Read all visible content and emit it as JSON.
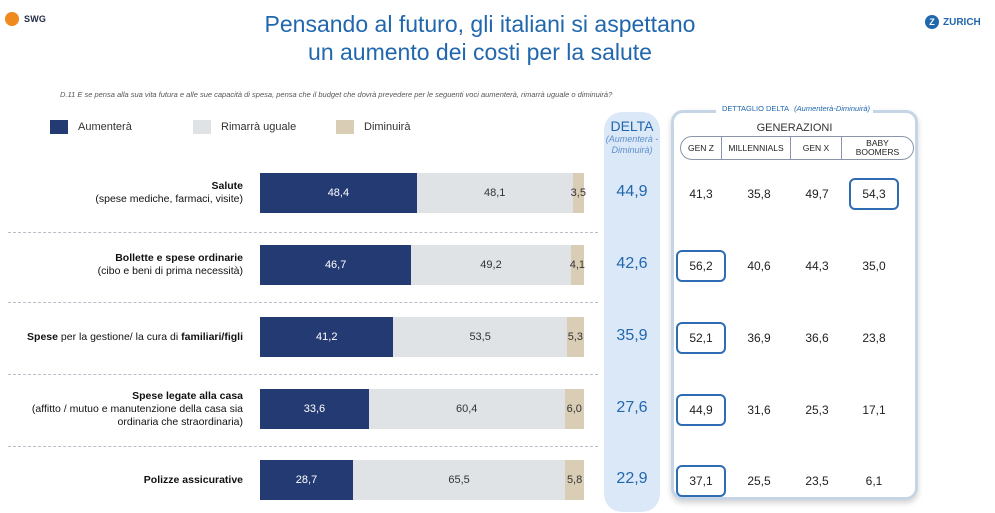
{
  "logos": {
    "left": "SWG",
    "right": "ZURICH"
  },
  "title_line1": "Pensando al futuro, gli italiani si aspettano",
  "title_line2": "un aumento dei costi per la salute",
  "question": "D.11 E se pensa alla sua vita futura e alle sue capacità di spesa, pensa che il budget che dovrà prevedere per le seguenti voci aumenterà, rimarrà uguale o diminuirà?",
  "legend": [
    "Aumenterà",
    "Rimarrà uguale",
    "Diminuirà"
  ],
  "colors": {
    "increase": "#233a72",
    "same": "#dfe3e6",
    "decrease": "#d9cdb6",
    "accent": "#2167ae",
    "delta_bg": "#dbe8f7"
  },
  "delta_header": {
    "title": "DELTA",
    "sub1": "(Aumenterà -",
    "sub2": "Diminuirà)"
  },
  "detail_label": "DETTAGLIO DELTA",
  "detail_label_note": "(Aumenterà-Diminuirà)",
  "generations_title": "GENERAZIONI",
  "gen_columns": [
    "GEN Z",
    "MILLENNIALS",
    "GEN X",
    "BABY BOOMERS"
  ],
  "chart_data": {
    "type": "bar",
    "stacked": true,
    "orientation": "horizontal",
    "categories": [
      {
        "label_bold": "Salute",
        "label_rest": "",
        "label_sub": "(spese mediche, farmaci, visite)"
      },
      {
        "label_bold": "Bollette e spese ordinarie",
        "label_rest": "",
        "label_sub": "(cibo e beni di prima necessità)"
      },
      {
        "label_bold": "Spese",
        "label_rest": " per la gestione/ la cura di ",
        "label_bold2": "familiari/figli",
        "label_sub": ""
      },
      {
        "label_bold": "Spese legate alla casa",
        "label_rest": "",
        "label_sub": "(affitto / mutuo e manutenzione della casa sia",
        "label_sub2": "ordinaria che straordinaria)"
      },
      {
        "label_bold": "Polizze assicurative",
        "label_rest": "",
        "label_sub": ""
      }
    ],
    "series": [
      {
        "name": "Aumenterà",
        "values": [
          48.4,
          46.7,
          41.2,
          33.6,
          28.7
        ]
      },
      {
        "name": "Rimarrà uguale",
        "values": [
          48.1,
          49.2,
          53.5,
          60.4,
          65.5
        ]
      },
      {
        "name": "Diminuirà",
        "values": [
          3.5,
          4.1,
          5.3,
          6.0,
          5.8
        ]
      }
    ],
    "delta": [
      44.9,
      42.6,
      35.9,
      27.6,
      22.9
    ],
    "generations": {
      "GEN Z": [
        41.3,
        56.2,
        52.1,
        44.9,
        37.1
      ],
      "MILLENNIALS": [
        35.8,
        40.6,
        36.9,
        31.6,
        25.5
      ],
      "GEN X": [
        49.7,
        44.3,
        36.6,
        25.3,
        23.5
      ],
      "BABY BOOMERS": [
        54.3,
        35.0,
        23.8,
        17.1,
        6.1
      ]
    },
    "highlighted": [
      [
        0,
        3
      ],
      [
        1,
        0
      ],
      [
        2,
        0
      ],
      [
        3,
        0
      ],
      [
        4,
        0
      ]
    ]
  }
}
